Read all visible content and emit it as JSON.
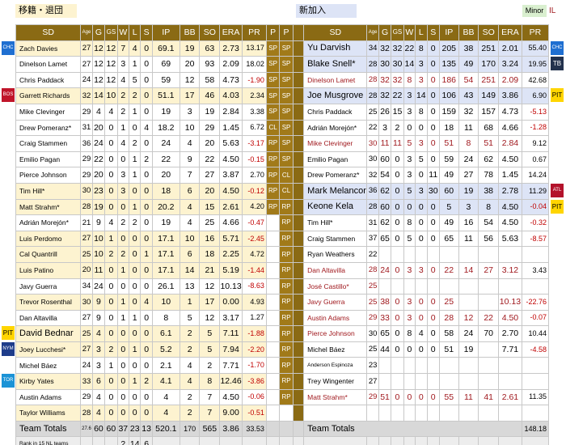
{
  "header": {
    "left_label": "移籍・退団",
    "right_label": "新加入",
    "minor_label": "Minor",
    "il_label": "IL"
  },
  "columns": {
    "sd": "SD",
    "age": "Age",
    "g": "G",
    "gs": "GS",
    "w": "W",
    "l": "L",
    "s": "S",
    "ip": "IP",
    "bb": "BB",
    "so": "SO",
    "era": "ERA",
    "pr": "PR",
    "p": "P"
  },
  "rows": [
    {
      "l": [
        "Zach Davies",
        "27",
        "12",
        "12",
        "7",
        "4",
        "0",
        "69.1",
        "19",
        "63",
        "2.73",
        "13.17"
      ],
      "p1": "SP",
      "p2": "SP",
      "r": [
        "Yu Darvish",
        "34",
        "32",
        "32",
        "22",
        "8",
        "0",
        "205",
        "38",
        "251",
        "2.01",
        "55.40"
      ],
      "lb": "CHC",
      "rb": "CHC",
      "ls": "sm",
      "rs": "big",
      "lbg": "#fdf3d0",
      "rbg": "#dde4f6"
    },
    {
      "l": [
        "Dinelson Lamet",
        "27",
        "12",
        "12",
        "3",
        "1",
        "0",
        "69",
        "20",
        "93",
        "2.09",
        "18.02"
      ],
      "p1": "SP",
      "p2": "SP",
      "r": [
        "Blake Snell*",
        "28",
        "30",
        "30",
        "14",
        "3",
        "0",
        "135",
        "49",
        "170",
        "3.24",
        "19.95"
      ],
      "lb": "",
      "rb": "TB",
      "ls": "sm",
      "rs": "big",
      "lbg": "#ffffff",
      "rbg": "#dde4f6"
    },
    {
      "l": [
        "Chris Paddack",
        "24",
        "12",
        "12",
        "4",
        "5",
        "0",
        "59",
        "12",
        "58",
        "4.73",
        "-1.90"
      ],
      "p1": "SP",
      "p2": "SP",
      "r": [
        "Dinelson Lamet",
        "28",
        "32",
        "32",
        "8",
        "3",
        "0",
        "186",
        "54",
        "251",
        "2.09",
        "42.68"
      ],
      "lb": "",
      "rb": "",
      "ls": "sm",
      "rs": "sm",
      "lbg": "#ffffff",
      "rbg": "#ffffff"
    },
    {
      "l": [
        "Garrett Richards",
        "32",
        "14",
        "10",
        "2",
        "2",
        "0",
        "51.1",
        "17",
        "46",
        "4.03",
        "2.34"
      ],
      "p1": "SP",
      "p2": "SP",
      "r": [
        "Joe Musgrove",
        "28",
        "32",
        "22",
        "3",
        "14",
        "0",
        "106",
        "43",
        "149",
        "3.86",
        "6.90"
      ],
      "lb": "BOS",
      "rb": "PIT",
      "ls": "sm",
      "rs": "big",
      "lbg": "#fdf3d0",
      "rbg": "#dde4f6"
    },
    {
      "l": [
        "Mike Clevinger",
        "29",
        "4",
        "4",
        "2",
        "1",
        "0",
        "19",
        "3",
        "19",
        "2.84",
        "3.38"
      ],
      "p1": "SP",
      "p2": "SP",
      "r": [
        "Chris Paddack",
        "25",
        "26",
        "15",
        "3",
        "8",
        "0",
        "159",
        "32",
        "157",
        "4.73",
        "-5.13"
      ],
      "lb": "",
      "rb": "",
      "ls": "sm",
      "rs": "sm",
      "lbg": "#ffffff",
      "rbg": "#ffffff"
    },
    {
      "l": [
        "Drew Pomeranz*",
        "31",
        "20",
        "0",
        "1",
        "0",
        "4",
        "18.2",
        "10",
        "29",
        "1.45",
        "6.72"
      ],
      "p1": "CL",
      "p2": "SP",
      "r": [
        "Adrián Morejón*",
        "22",
        "3",
        "2",
        "0",
        "0",
        "0",
        "18",
        "11",
        "68",
        "4.66",
        "-1.28"
      ],
      "lb": "",
      "rb": "",
      "ls": "sm",
      "rs": "sm",
      "lbg": "#ffffff",
      "rbg": "#ffffff"
    },
    {
      "l": [
        "Craig Stammen",
        "36",
        "24",
        "0",
        "4",
        "2",
        "0",
        "24",
        "4",
        "20",
        "5.63",
        "-3.17"
      ],
      "p1": "RP",
      "p2": "SP",
      "r": [
        "Mike Clevinger",
        "30",
        "11",
        "11",
        "5",
        "3",
        "0",
        "51",
        "8",
        "51",
        "2.84",
        "9.12"
      ],
      "lb": "",
      "rb": "",
      "ls": "sm",
      "rs": "sm",
      "lbg": "#ffffff",
      "rbg": "#ffffff"
    },
    {
      "l": [
        "Emilio Pagan",
        "29",
        "22",
        "0",
        "0",
        "1",
        "2",
        "22",
        "9",
        "22",
        "4.50",
        "-0.15"
      ],
      "p1": "RP",
      "p2": "SP",
      "r": [
        "Emilio Pagan",
        "30",
        "60",
        "0",
        "3",
        "5",
        "0",
        "59",
        "24",
        "62",
        "4.50",
        "0.67"
      ],
      "lb": "",
      "rb": "",
      "ls": "sm",
      "rs": "sm",
      "lbg": "#ffffff",
      "rbg": "#ffffff"
    },
    {
      "l": [
        "Pierce Johnson",
        "29",
        "20",
        "0",
        "3",
        "1",
        "0",
        "20",
        "7",
        "27",
        "3.87",
        "2.70"
      ],
      "p1": "RP",
      "p2": "CL",
      "r": [
        "Drew Pomeranz*",
        "32",
        "54",
        "0",
        "3",
        "0",
        "11",
        "49",
        "27",
        "78",
        "1.45",
        "14.24"
      ],
      "lb": "",
      "rb": "",
      "ls": "sm",
      "rs": "sm",
      "lbg": "#ffffff",
      "rbg": "#ffffff"
    },
    {
      "l": [
        "Tim Hill*",
        "30",
        "23",
        "0",
        "3",
        "0",
        "0",
        "18",
        "6",
        "20",
        "4.50",
        "-0.12"
      ],
      "p1": "RP",
      "p2": "CL",
      "r": [
        "Mark Melancon",
        "36",
        "62",
        "0",
        "5",
        "3",
        "30",
        "60",
        "19",
        "38",
        "2.78",
        "11.29"
      ],
      "lb": "",
      "rb": "ATL",
      "ls": "sm",
      "rs": "big",
      "lbg": "#fdf3d0",
      "rbg": "#dde4f6"
    },
    {
      "l": [
        "Matt Strahm*",
        "28",
        "19",
        "0",
        "0",
        "1",
        "0",
        "20.2",
        "4",
        "15",
        "2.61",
        "4.20"
      ],
      "p1": "RP",
      "p2": "RP",
      "r": [
        "Keone Kela",
        "28",
        "60",
        "0",
        "0",
        "0",
        "0",
        "5",
        "3",
        "8",
        "4.50",
        "-0.04"
      ],
      "lb": "",
      "rb": "PIT",
      "ls": "sm",
      "rs": "big",
      "lbg": "#fdf3d0",
      "rbg": "#dde4f6"
    },
    {
      "l": [
        "Adrián Morejón*",
        "21",
        "9",
        "4",
        "2",
        "2",
        "0",
        "19",
        "4",
        "25",
        "4.66",
        "-0.47"
      ],
      "p1": "",
      "p2": "RP",
      "r": [
        "Tim Hill*",
        "31",
        "62",
        "0",
        "8",
        "0",
        "0",
        "49",
        "16",
        "54",
        "4.50",
        "-0.32"
      ],
      "lb": "",
      "rb": "",
      "ls": "sm",
      "rs": "sm",
      "lbg": "#ffffff",
      "rbg": "#ffffff"
    },
    {
      "l": [
        "Luis Perdomo",
        "27",
        "10",
        "1",
        "0",
        "0",
        "0",
        "17.1",
        "10",
        "16",
        "5.71",
        "-2.45"
      ],
      "p1": "",
      "p2": "RP",
      "r": [
        "Craig Stammen",
        "37",
        "65",
        "0",
        "5",
        "0",
        "0",
        "65",
        "11",
        "56",
        "5.63",
        "-8.57"
      ],
      "lb": "",
      "rb": "",
      "ls": "sm",
      "rs": "sm",
      "lbg": "#fdf3d0",
      "rbg": "#ffffff"
    },
    {
      "l": [
        "Cal Quantrill",
        "25",
        "10",
        "2",
        "2",
        "0",
        "1",
        "17.1",
        "6",
        "18",
        "2.25",
        "4.72"
      ],
      "p1": "",
      "p2": "RP",
      "r": [
        "Ryan Weathers",
        "22",
        "",
        "",
        "",
        "",
        "",
        "",
        "",
        "",
        "",
        ""
      ],
      "lb": "",
      "rb": "",
      "ls": "sm",
      "rs": "sm",
      "lbg": "#fdf3d0",
      "rbg": "#ffffff"
    },
    {
      "l": [
        "Luis Patino",
        "20",
        "11",
        "0",
        "1",
        "0",
        "0",
        "17.1",
        "14",
        "21",
        "5.19",
        "-1.44"
      ],
      "p1": "",
      "p2": "RP",
      "r": [
        "Dan Altavilla",
        "28",
        "24",
        "0",
        "3",
        "3",
        "0",
        "22",
        "14",
        "27",
        "3.12",
        "3.43"
      ],
      "lb": "",
      "rb": "",
      "ls": "sm",
      "rs": "sm",
      "lbg": "#fdf3d0",
      "rbg": "#ffffff"
    },
    {
      "l": [
        "Javy Guerra",
        "34",
        "24",
        "0",
        "0",
        "0",
        "0",
        "26.1",
        "13",
        "12",
        "10.13",
        "-8.63"
      ],
      "p1": "",
      "p2": "RP",
      "r": [
        "José Castillo*",
        "25",
        "",
        "",
        "",
        "",
        "",
        "",
        "",
        "",
        "",
        ""
      ],
      "lb": "",
      "rb": "",
      "ls": "sm",
      "rs": "sm",
      "lbg": "#ffffff",
      "rbg": "#ffffff"
    },
    {
      "l": [
        "Trevor Rosenthal",
        "30",
        "9",
        "0",
        "1",
        "0",
        "4",
        "10",
        "1",
        "17",
        "0.00",
        "4.93"
      ],
      "p1": "",
      "p2": "RP",
      "r": [
        "Javy Guerra",
        "25",
        "38",
        "0",
        "3",
        "0",
        "0",
        "25",
        "",
        "",
        "10.13",
        "-22.76"
      ],
      "lb": "",
      "rb": "",
      "ls": "sm",
      "rs": "sm",
      "lbg": "#fdf3d0",
      "rbg": "#ffffff"
    },
    {
      "l": [
        "Dan Altavilla",
        "27",
        "9",
        "0",
        "1",
        "1",
        "0",
        "8",
        "5",
        "12",
        "3.17",
        "1.27"
      ],
      "p1": "",
      "p2": "RP",
      "r": [
        "Austin Adams",
        "29",
        "33",
        "0",
        "3",
        "0",
        "0",
        "28",
        "12",
        "22",
        "4.50",
        "-0.07"
      ],
      "lb": "",
      "rb": "",
      "ls": "sm",
      "rs": "sm",
      "lbg": "#ffffff",
      "rbg": "#ffffff"
    },
    {
      "l": [
        "David Bednar",
        "25",
        "4",
        "0",
        "0",
        "0",
        "0",
        "6.1",
        "2",
        "5",
        "7.11",
        "-1.88"
      ],
      "p1": "",
      "p2": "RP",
      "r": [
        "Pierce Johnson",
        "30",
        "65",
        "0",
        "8",
        "4",
        "0",
        "58",
        "24",
        "70",
        "2.70",
        "10.44"
      ],
      "lb": "PIT",
      "rb": "",
      "ls": "big",
      "rs": "sm",
      "lbg": "#fdf3d0",
      "rbg": "#ffffff"
    },
    {
      "l": [
        "Joey Lucchesi*",
        "27",
        "3",
        "2",
        "0",
        "1",
        "0",
        "5.2",
        "2",
        "5",
        "7.94",
        "-2.20"
      ],
      "p1": "",
      "p2": "RP",
      "r": [
        "Michel Báez",
        "25",
        "44",
        "0",
        "0",
        "0",
        "0",
        "51",
        "19",
        "",
        "7.71",
        "-4.58"
      ],
      "lb": "NYM",
      "rb": "",
      "ls": "sm",
      "rs": "sm",
      "lbg": "#fdf3d0",
      "rbg": "#ffffff"
    },
    {
      "l": [
        "Michel Báez",
        "24",
        "3",
        "1",
        "0",
        "0",
        "0",
        "2.1",
        "4",
        "2",
        "7.71",
        "-1.70"
      ],
      "p1": "",
      "p2": "RP",
      "r": [
        "Anderson Espinoza",
        "23",
        "",
        "",
        "",
        "",
        "",
        "",
        "",
        "",
        "",
        ""
      ],
      "lb": "",
      "rb": "",
      "ls": "sm",
      "rs": "sm",
      "lbg": "#ffffff",
      "rbg": "#ffffff"
    },
    {
      "l": [
        "Kirby Yates",
        "33",
        "6",
        "0",
        "0",
        "1",
        "2",
        "4.1",
        "4",
        "8",
        "12.46",
        "-3.86"
      ],
      "p1": "",
      "p2": "RP",
      "r": [
        "Trey Wingenter",
        "27",
        "",
        "",
        "",
        "",
        "",
        "",
        "",
        "",
        "",
        ""
      ],
      "lb": "TOR",
      "rb": "",
      "ls": "sm",
      "rs": "sm",
      "lbg": "#fdf3d0",
      "rbg": "#ffffff"
    },
    {
      "l": [
        "Austin Adams",
        "29",
        "4",
        "0",
        "0",
        "0",
        "0",
        "4",
        "2",
        "7",
        "4.50",
        "-0.06"
      ],
      "p1": "",
      "p2": "RP",
      "r": [
        "Matt Strahm*",
        "29",
        "51",
        "0",
        "0",
        "0",
        "0",
        "55",
        "11",
        "41",
        "2.61",
        "11.35"
      ],
      "lb": "",
      "rb": "",
      "ls": "sm",
      "rs": "sm",
      "lbg": "#ffffff",
      "rbg": "#ffffff"
    },
    {
      "l": [
        "Taylor Williams",
        "28",
        "4",
        "0",
        "0",
        "0",
        "0",
        "4",
        "2",
        "7",
        "9.00",
        "-0.51"
      ],
      "p1": "",
      "p2": "",
      "r": [
        "",
        "",
        "",
        "",
        "",
        "",
        "",
        "",
        "",
        "",
        "",
        ""
      ],
      "lb": "",
      "rb": "",
      "ls": "sm",
      "rs": "sm",
      "lbg": "#fdf3d0",
      "rbg": "#ffffff"
    }
  ],
  "totals": {
    "label_left": "Team Totals",
    "l": [
      "27.6",
      "60",
      "60",
      "37",
      "23",
      "13",
      "520.1",
      "170",
      "565",
      "3.86",
      "33.53"
    ],
    "label_right": "Team Totals",
    "r_pr": "148.18"
  },
  "rank": {
    "label": "Rank in 15 NL teams",
    "l": [
      "",
      "",
      "",
      "2",
      "14",
      "6"
    ]
  },
  "colors": {
    "header_bg": "#8a6a14",
    "left_highlight": "#fdf3d0",
    "right_highlight": "#dde4f6",
    "negative": "#c00000"
  },
  "badge_colors": {
    "CHC": "#1f6fd1",
    "TB": "#23324d",
    "BOS": "#c0152a",
    "PIT": "#ffd500",
    "ATL": "#b3122b",
    "NYM": "#1e3c8a",
    "TOR": "#1b93d6"
  }
}
